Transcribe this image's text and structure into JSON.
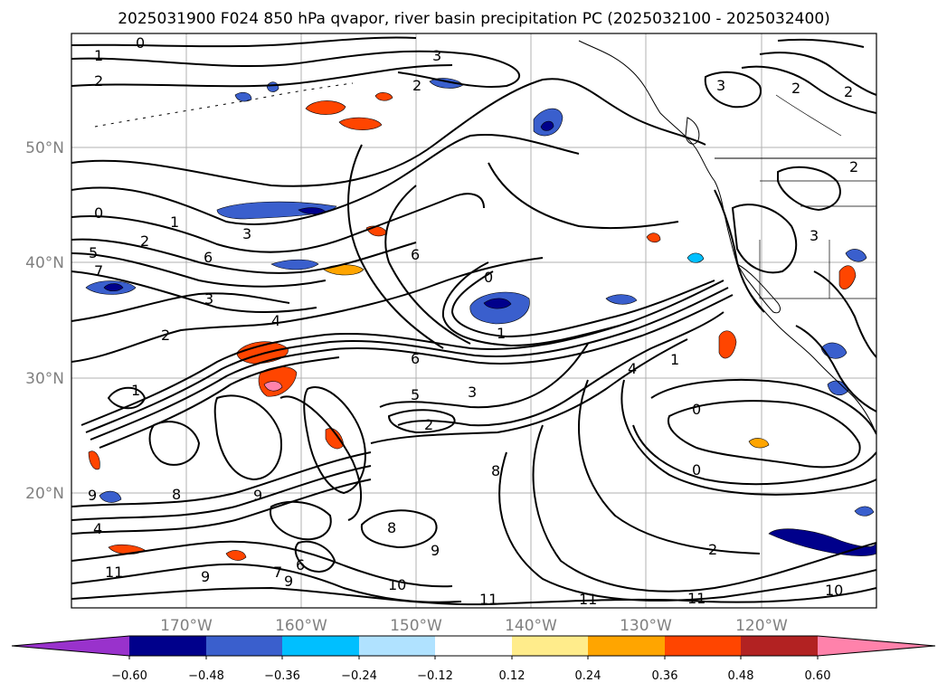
{
  "title": "2025031900 F024 850 hPa qvapor, river basin precipitation PC (2025032100 - 2025032400)",
  "map": {
    "lon_labels": [
      "170°W",
      "160°W",
      "150°W",
      "140°W",
      "130°W",
      "120°W"
    ],
    "lat_labels": [
      "50°N",
      "40°N",
      "30°N",
      "20°N"
    ],
    "gridlines": true
  },
  "colorbar": {
    "extend": "both",
    "orientation": "horizontal",
    "colors": [
      "#9932CC",
      "#00008B",
      "#3A5FCD",
      "#00BFFF",
      "#B0E2FF",
      "#FFFFFF",
      "#FFEC8B",
      "#FFA500",
      "#FF4500",
      "#B22222",
      "#FF82AB"
    ],
    "tick_labels": [
      "−0.60",
      "−0.48",
      "−0.36",
      "−0.24",
      "−0.12",
      "0.12",
      "0.24",
      "0.36",
      "0.48",
      "0.60"
    ]
  },
  "contour_labels": [
    {
      "text": "0"
    },
    {
      "text": "1"
    },
    {
      "text": "2"
    },
    {
      "text": "3"
    },
    {
      "text": "2"
    },
    {
      "text": "2"
    },
    {
      "text": "2"
    },
    {
      "text": "3"
    },
    {
      "text": "0"
    },
    {
      "text": "1"
    },
    {
      "text": "2"
    },
    {
      "text": "5"
    },
    {
      "text": "7"
    },
    {
      "text": "6"
    },
    {
      "text": "3"
    },
    {
      "text": "3"
    },
    {
      "text": "2"
    },
    {
      "text": "4"
    },
    {
      "text": "1"
    },
    {
      "text": "6"
    },
    {
      "text": "5"
    },
    {
      "text": "3"
    },
    {
      "text": "2"
    },
    {
      "text": "6"
    },
    {
      "text": "0"
    },
    {
      "text": "1"
    },
    {
      "text": "0"
    },
    {
      "text": "4"
    },
    {
      "text": "1"
    },
    {
      "text": "8"
    },
    {
      "text": "9"
    },
    {
      "text": "8"
    },
    {
      "text": "9"
    },
    {
      "text": "4"
    },
    {
      "text": "11"
    },
    {
      "text": "9"
    },
    {
      "text": "7"
    },
    {
      "text": "6"
    },
    {
      "text": "9"
    },
    {
      "text": "10"
    },
    {
      "text": "11"
    },
    {
      "text": "11"
    },
    {
      "text": "11"
    },
    {
      "text": "2"
    },
    {
      "text": "10"
    },
    {
      "text": "0"
    },
    {
      "text": "3"
    },
    {
      "text": "2"
    },
    {
      "text": "8"
    },
    {
      "text": "9"
    }
  ]
}
